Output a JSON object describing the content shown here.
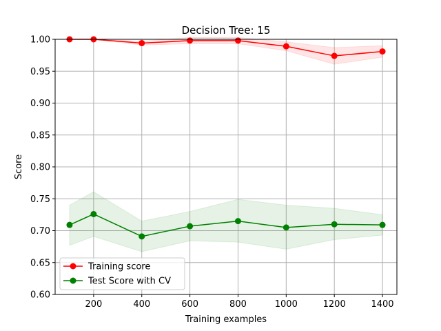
{
  "chart_data": {
    "type": "line",
    "title": "Decision Tree: 15",
    "xlabel": "Training examples",
    "ylabel": "Score",
    "x": [
      100,
      200,
      400,
      600,
      800,
      1000,
      1200,
      1400
    ],
    "xlim": [
      40,
      1460
    ],
    "ylim": [
      0.6,
      1.0
    ],
    "xticks": [
      200,
      400,
      600,
      800,
      1000,
      1200,
      1400
    ],
    "yticks": [
      0.6,
      0.65,
      0.7,
      0.75,
      0.8,
      0.85,
      0.9,
      0.95,
      1.0
    ],
    "xtick_labels": [
      "200",
      "400",
      "600",
      "800",
      "1000",
      "1200",
      "1400"
    ],
    "ytick_labels": [
      "0.60",
      "0.65",
      "0.70",
      "0.75",
      "0.80",
      "0.85",
      "0.90",
      "0.95",
      "1.00"
    ],
    "grid": true,
    "legend_position": "lower-left",
    "series": [
      {
        "name": "Training score",
        "color": "#ff0000",
        "band_color": "#ff0000",
        "values": [
          1.0,
          1.0,
          0.994,
          0.998,
          0.998,
          0.989,
          0.974,
          0.981
        ],
        "band_lower": [
          1.0,
          1.0,
          0.991,
          0.993,
          0.993,
          0.982,
          0.961,
          0.972
        ],
        "band_upper": [
          1.0,
          1.0,
          0.997,
          1.003,
          1.003,
          0.996,
          0.987,
          0.99
        ]
      },
      {
        "name": "Test Score with CV",
        "color": "#008000",
        "band_color": "#008000",
        "values": [
          0.709,
          0.726,
          0.691,
          0.707,
          0.715,
          0.705,
          0.71,
          0.709
        ],
        "band_lower": [
          0.677,
          0.691,
          0.667,
          0.684,
          0.682,
          0.671,
          0.686,
          0.693
        ],
        "band_upper": [
          0.74,
          0.761,
          0.715,
          0.73,
          0.749,
          0.74,
          0.735,
          0.725
        ]
      }
    ]
  }
}
